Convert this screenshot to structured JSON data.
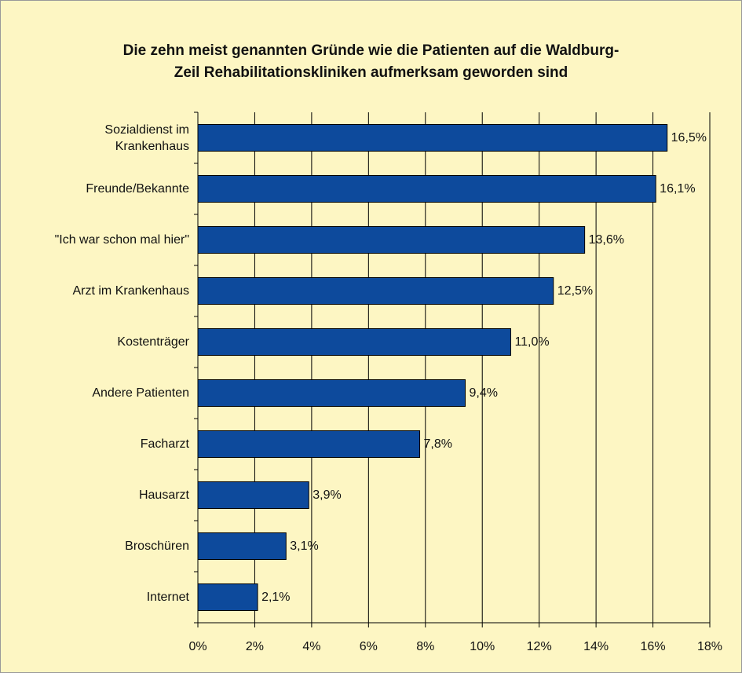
{
  "chart_data": {
    "type": "bar",
    "orientation": "horizontal",
    "title": "Die zehn meist genannten Gründe wie die Patienten auf die Waldburg-\nZeil Rehabilitationskliniken aufmerksam geworden sind",
    "categories": [
      "Sozialdienst im\nKrankenhaus",
      "Freunde/Bekannte",
      "\"Ich war schon mal hier\"",
      "Arzt im Krankenhaus",
      "Kostenträger",
      "Andere Patienten",
      "Facharzt",
      "Hausarzt",
      "Broschüren",
      "Internet"
    ],
    "values": [
      16.5,
      16.1,
      13.6,
      12.5,
      11.0,
      9.4,
      7.8,
      3.9,
      3.1,
      2.1
    ],
    "value_labels": [
      "16,5%",
      "16,1%",
      "13,6%",
      "12,5%",
      "11,0%",
      "9,4%",
      "7,8%",
      "3,9%",
      "3,1%",
      "2,1%"
    ],
    "color": "#0d4a9c",
    "xlim": [
      0,
      18
    ],
    "xticks": [
      {
        "value": 0,
        "label": "0%"
      },
      {
        "value": 2,
        "label": "2%"
      },
      {
        "value": 4,
        "label": "4%"
      },
      {
        "value": 6,
        "label": "6%"
      },
      {
        "value": 8,
        "label": "8%"
      },
      {
        "value": 10,
        "label": "10%"
      },
      {
        "value": 12,
        "label": "12%"
      },
      {
        "value": 14,
        "label": "14%"
      },
      {
        "value": 16,
        "label": "16%"
      },
      {
        "value": 18,
        "label": "18%"
      }
    ],
    "grid": true
  }
}
